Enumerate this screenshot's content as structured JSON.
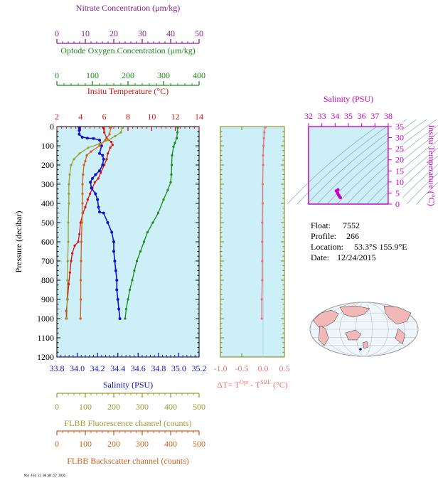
{
  "colors": {
    "nitrate": "#8b1c8b",
    "oxygen": "#1a8a1a",
    "temperature": "#dd1111",
    "salinity": "#1111cc",
    "fluorescence": "#9aa033",
    "backscatter": "#d2601c",
    "delta_t": "#f07070",
    "magenta": "#cc00cc",
    "panel_bg": "#cdeff8",
    "axis_olive": "#808000"
  },
  "info": {
    "float_label": "Float:",
    "float_value": "7552",
    "profile_label": "Profile:",
    "profile_value": "266",
    "location_label": "Location:",
    "location_value": "53.3°S 155.9°E",
    "date_label": "Date:",
    "date_value": "12/24/2015"
  },
  "footer": "Mon Feb 22 08:04:52 2016",
  "chart_data": [
    {
      "type": "line",
      "panel": "main-profile",
      "ylabel": "Pressure (decibar)",
      "ylim": [
        0,
        1200
      ],
      "yticks": [
        "0",
        "100",
        "200",
        "300",
        "400",
        "500",
        "600",
        "700",
        "800",
        "900",
        "1000",
        "1100",
        "1200"
      ],
      "y_inverted": true,
      "axes": [
        {
          "key": "nitrate",
          "label": "Nitrate Concentration (μm/kg)",
          "range": [
            0,
            50
          ],
          "ticks": [
            "0",
            "10",
            "20",
            "30",
            "40",
            "50"
          ],
          "position": "top"
        },
        {
          "key": "oxygen",
          "label": "Optode Oxygen Concentration (μm/kg)",
          "range": [
            0,
            400
          ],
          "ticks": [
            "0",
            "100",
            "200",
            "300",
            "400"
          ],
          "position": "top"
        },
        {
          "key": "temperature",
          "label": "Insitu Temperature (°C)",
          "range": [
            2,
            14
          ],
          "ticks": [
            "2",
            "4",
            "6",
            "8",
            "10",
            "12",
            "14"
          ],
          "position": "top"
        },
        {
          "key": "salinity",
          "label": "Salinity (PSU)",
          "range": [
            33.8,
            35.2
          ],
          "ticks": [
            "33.8",
            "34.0",
            "34.2",
            "34.4",
            "34.6",
            "34.8",
            "35.0",
            "35.2"
          ],
          "position": "bottom"
        },
        {
          "key": "fluorescence",
          "label": "FLBB Fluorescence channel (counts)",
          "range": [
            0,
            500
          ],
          "ticks": [
            "0",
            "100",
            "200",
            "300",
            "400",
            "500"
          ],
          "position": "bottom"
        },
        {
          "key": "backscatter",
          "label": "FLBB Backscatter channel (counts)",
          "range": [
            0,
            500
          ],
          "ticks": [
            "0",
            "100",
            "200",
            "300",
            "400",
            "500"
          ],
          "position": "bottom"
        }
      ],
      "series": [
        {
          "axis": "oxygen",
          "points": [
            [
              340,
              5
            ],
            [
              339,
              30
            ],
            [
              337,
              60
            ],
            [
              332,
              85
            ],
            [
              328,
              105
            ],
            [
              324,
              150
            ],
            [
              323,
              200
            ],
            [
              322,
              250
            ],
            [
              320,
              290
            ],
            [
              312,
              330
            ],
            [
              300,
              380
            ],
            [
              285,
              450
            ],
            [
              270,
              500
            ],
            [
              255,
              550
            ],
            [
              245,
              600
            ],
            [
              235,
              650
            ],
            [
              225,
              700
            ],
            [
              218,
              750
            ],
            [
              212,
              800
            ],
            [
              205,
              850
            ],
            [
              200,
              900
            ],
            [
              195,
              950
            ],
            [
              192,
              1000
            ]
          ]
        },
        {
          "axis": "temperature",
          "points": [
            [
              5.9,
              5
            ],
            [
              6.0,
              30
            ],
            [
              6.2,
              60
            ],
            [
              6.6,
              80
            ],
            [
              6.7,
              95
            ],
            [
              6.5,
              110
            ],
            [
              6.3,
              140
            ],
            [
              6.2,
              170
            ],
            [
              6.0,
              200
            ],
            [
              5.7,
              240
            ],
            [
              5.5,
              270
            ],
            [
              5.2,
              290
            ],
            [
              5.0,
              320
            ],
            [
              4.8,
              350
            ],
            [
              4.6,
              380
            ],
            [
              4.4,
              420
            ],
            [
              4.2,
              450
            ],
            [
              4.0,
              500
            ],
            [
              3.9,
              560
            ],
            [
              3.8,
              600
            ],
            [
              3.5,
              620
            ],
            [
              3.3,
              660
            ],
            [
              3.2,
              700
            ],
            [
              3.1,
              760
            ],
            [
              3.0,
              820
            ],
            [
              2.9,
              900
            ],
            [
              2.8,
              960
            ],
            [
              2.8,
              1000
            ]
          ]
        },
        {
          "axis": "salinity",
          "points": [
            [
              34.02,
              5
            ],
            [
              34.02,
              20
            ],
            [
              34.02,
              40
            ],
            [
              34.05,
              55
            ],
            [
              34.1,
              60
            ],
            [
              34.16,
              62
            ],
            [
              34.22,
              70
            ],
            [
              34.24,
              100
            ],
            [
              34.22,
              140
            ],
            [
              34.25,
              150
            ],
            [
              34.26,
              170
            ],
            [
              34.25,
              200
            ],
            [
              34.22,
              230
            ],
            [
              34.18,
              250
            ],
            [
              34.15,
              270
            ],
            [
              34.13,
              290
            ],
            [
              34.14,
              320
            ],
            [
              34.18,
              350
            ],
            [
              34.2,
              380
            ],
            [
              34.21,
              420
            ],
            [
              34.22,
              445
            ],
            [
              34.26,
              450
            ],
            [
              34.3,
              500
            ],
            [
              34.34,
              550
            ],
            [
              34.36,
              600
            ],
            [
              34.36,
              650
            ],
            [
              34.37,
              700
            ],
            [
              34.38,
              750
            ],
            [
              34.39,
              800
            ],
            [
              34.39,
              850
            ],
            [
              34.4,
              900
            ],
            [
              34.41,
              950
            ],
            [
              34.42,
              1000
            ]
          ]
        },
        {
          "axis": "fluorescence",
          "points": [
            [
              230,
              5
            ],
            [
              225,
              30
            ],
            [
              205,
              50
            ],
            [
              180,
              70
            ],
            [
              150,
              90
            ],
            [
              110,
              110
            ],
            [
              80,
              140
            ],
            [
              60,
              170
            ],
            [
              50,
              200
            ],
            [
              45,
              250
            ],
            [
              42,
              300
            ],
            [
              42,
              350
            ],
            [
              42,
              400
            ],
            [
              40,
              500
            ],
            [
              40,
              600
            ],
            [
              38,
              700
            ],
            [
              37,
              800
            ],
            [
              36,
              900
            ],
            [
              35,
              1000
            ]
          ]
        },
        {
          "axis": "backscatter",
          "points": [
            [
              190,
              5
            ],
            [
              185,
              40
            ],
            [
              170,
              70
            ],
            [
              150,
              100
            ],
            [
              120,
              130
            ],
            [
              105,
              150
            ],
            [
              100,
              180
            ],
            [
              95,
              200
            ],
            [
              92,
              250
            ],
            [
              90,
              300
            ],
            [
              90,
              350
            ],
            [
              90,
              400
            ],
            [
              90,
              450
            ],
            [
              88,
              500
            ],
            [
              86,
              600
            ],
            [
              85,
              700
            ],
            [
              84,
              800
            ],
            [
              84,
              900
            ],
            [
              83,
              1000
            ]
          ]
        }
      ]
    },
    {
      "type": "line",
      "panel": "delta-t",
      "xlabel": "ΔT= T",
      "xlabel_sup1": "Opt",
      "xlabel_mid": " - T",
      "xlabel_sup2": "SBE",
      "xlabel_end": " (°C)",
      "xlim": [
        -1.0,
        0.5
      ],
      "xticks": [
        "-1.0",
        "-0.5",
        "0.0",
        "0.5"
      ],
      "ylim": [
        0,
        1200
      ],
      "series": [
        {
          "name": "delta_t",
          "points": [
            [
              0.05,
              5
            ],
            [
              0.03,
              30
            ],
            [
              0.02,
              60
            ],
            [
              0.01,
              100
            ],
            [
              0.0,
              150
            ],
            [
              0.0,
              200
            ],
            [
              -0.01,
              300
            ],
            [
              -0.01,
              400
            ],
            [
              -0.02,
              500
            ],
            [
              -0.02,
              600
            ],
            [
              -0.02,
              700
            ],
            [
              -0.02,
              800
            ],
            [
              -0.03,
              900
            ],
            [
              -0.03,
              1000
            ]
          ]
        }
      ]
    },
    {
      "type": "scatter",
      "panel": "ts-diagram",
      "title": "Salinity (PSU)",
      "xlim": [
        32,
        38
      ],
      "xticks": [
        "32",
        "33",
        "34",
        "35",
        "36",
        "37",
        "38"
      ],
      "ylabel": "Insitu Temperature (°C)",
      "ylim": [
        0,
        35
      ],
      "yticks": [
        "0",
        "5",
        "10",
        "15",
        "20",
        "25",
        "30",
        "35"
      ],
      "points": [
        [
          34.08,
          6.0
        ],
        [
          34.15,
          5.5
        ],
        [
          34.2,
          4.8
        ],
        [
          34.25,
          4.2
        ],
        [
          34.3,
          3.6
        ],
        [
          34.35,
          3.2
        ],
        [
          34.4,
          2.9
        ],
        [
          34.12,
          5.8
        ],
        [
          34.22,
          6.5
        ],
        [
          34.18,
          5.0
        ],
        [
          34.28,
          3.9
        ]
      ]
    }
  ]
}
